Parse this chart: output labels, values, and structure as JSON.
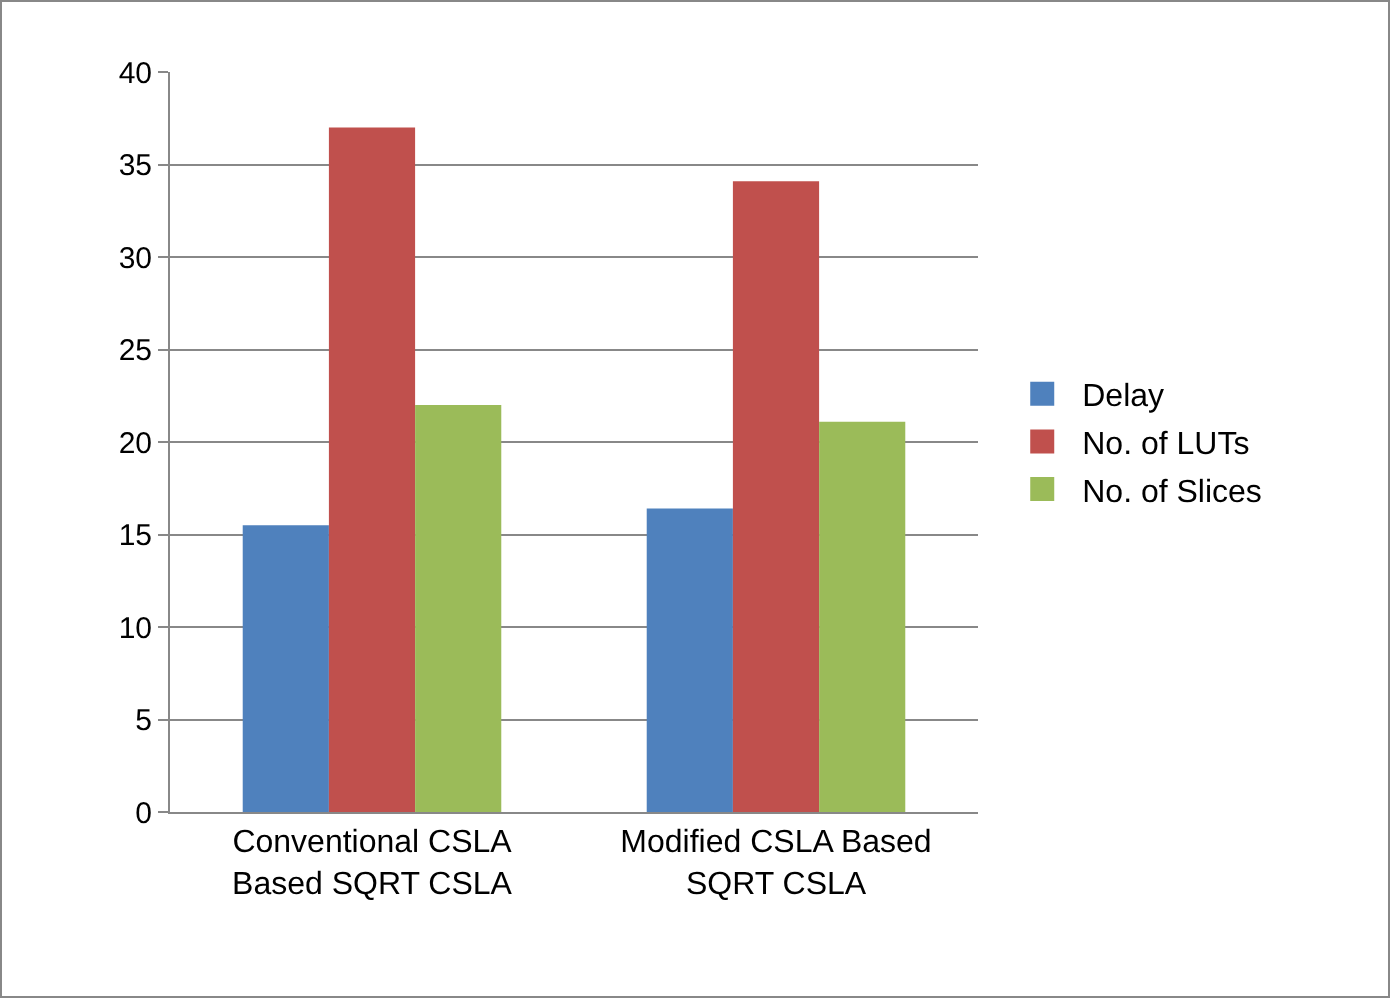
{
  "chart_data": {
    "type": "bar",
    "categories": [
      "Conventional CSLA\nBased SQRT CSLA",
      "Modified CSLA Based\nSQRT CSLA"
    ],
    "series": [
      {
        "name": "Delay",
        "color": "#4f81bd",
        "values": [
          15.5,
          16.4
        ]
      },
      {
        "name": "No. of LUTs",
        "color": "#c0504d",
        "values": [
          37,
          34.1
        ]
      },
      {
        "name": "No. of Slices",
        "color": "#9bbb59",
        "values": [
          22,
          21.1
        ]
      }
    ],
    "ylim": [
      0,
      40
    ],
    "yticks": [
      0,
      5,
      10,
      15,
      20,
      25,
      30,
      35,
      40
    ],
    "grid": "y",
    "legend": "right"
  }
}
